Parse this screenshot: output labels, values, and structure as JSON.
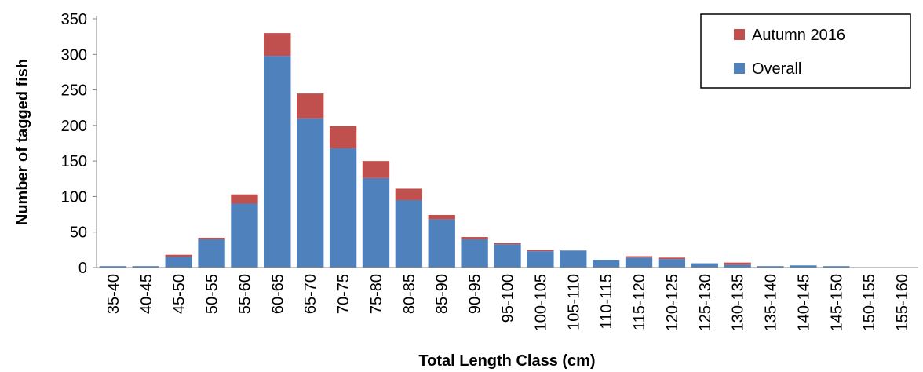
{
  "chart_data": {
    "type": "bar",
    "stacked": true,
    "xlabel": "Total Length Class (cm)",
    "ylabel": "Number of tagged fish",
    "ylim": [
      0,
      350
    ],
    "yticks": [
      0,
      50,
      100,
      150,
      200,
      250,
      300,
      350
    ],
    "grid": false,
    "legend_position": "top-right",
    "categories": [
      "35-40",
      "40-45",
      "45-50",
      "50-55",
      "55-60",
      "60-65",
      "65-70",
      "70-75",
      "75-80",
      "80-85",
      "85-90",
      "90-95",
      "95-100",
      "100-105",
      "105-110",
      "110-115",
      "115-120",
      "120-125",
      "125-130",
      "130-135",
      "135-140",
      "140-145",
      "145-150",
      "150-155",
      "155-160"
    ],
    "series": [
      {
        "name": "Overall",
        "color": "#4f81bd",
        "values": [
          2,
          2,
          15,
          40,
          90,
          298,
          210,
          168,
          126,
          95,
          68,
          40,
          33,
          23,
          24,
          11,
          14,
          12,
          6,
          4,
          2,
          3,
          2,
          0,
          0
        ]
      },
      {
        "name": "Autumn 2016",
        "color": "#c0504d",
        "values": [
          0,
          0,
          3,
          2,
          13,
          32,
          35,
          31,
          24,
          16,
          6,
          3,
          2,
          2,
          0,
          0,
          2,
          2,
          0,
          3,
          0,
          0,
          0,
          0,
          0
        ]
      }
    ],
    "legend": [
      {
        "label": "Autumn 2016",
        "color": "#c0504d"
      },
      {
        "label": "Overall",
        "color": "#4f81bd"
      }
    ]
  }
}
